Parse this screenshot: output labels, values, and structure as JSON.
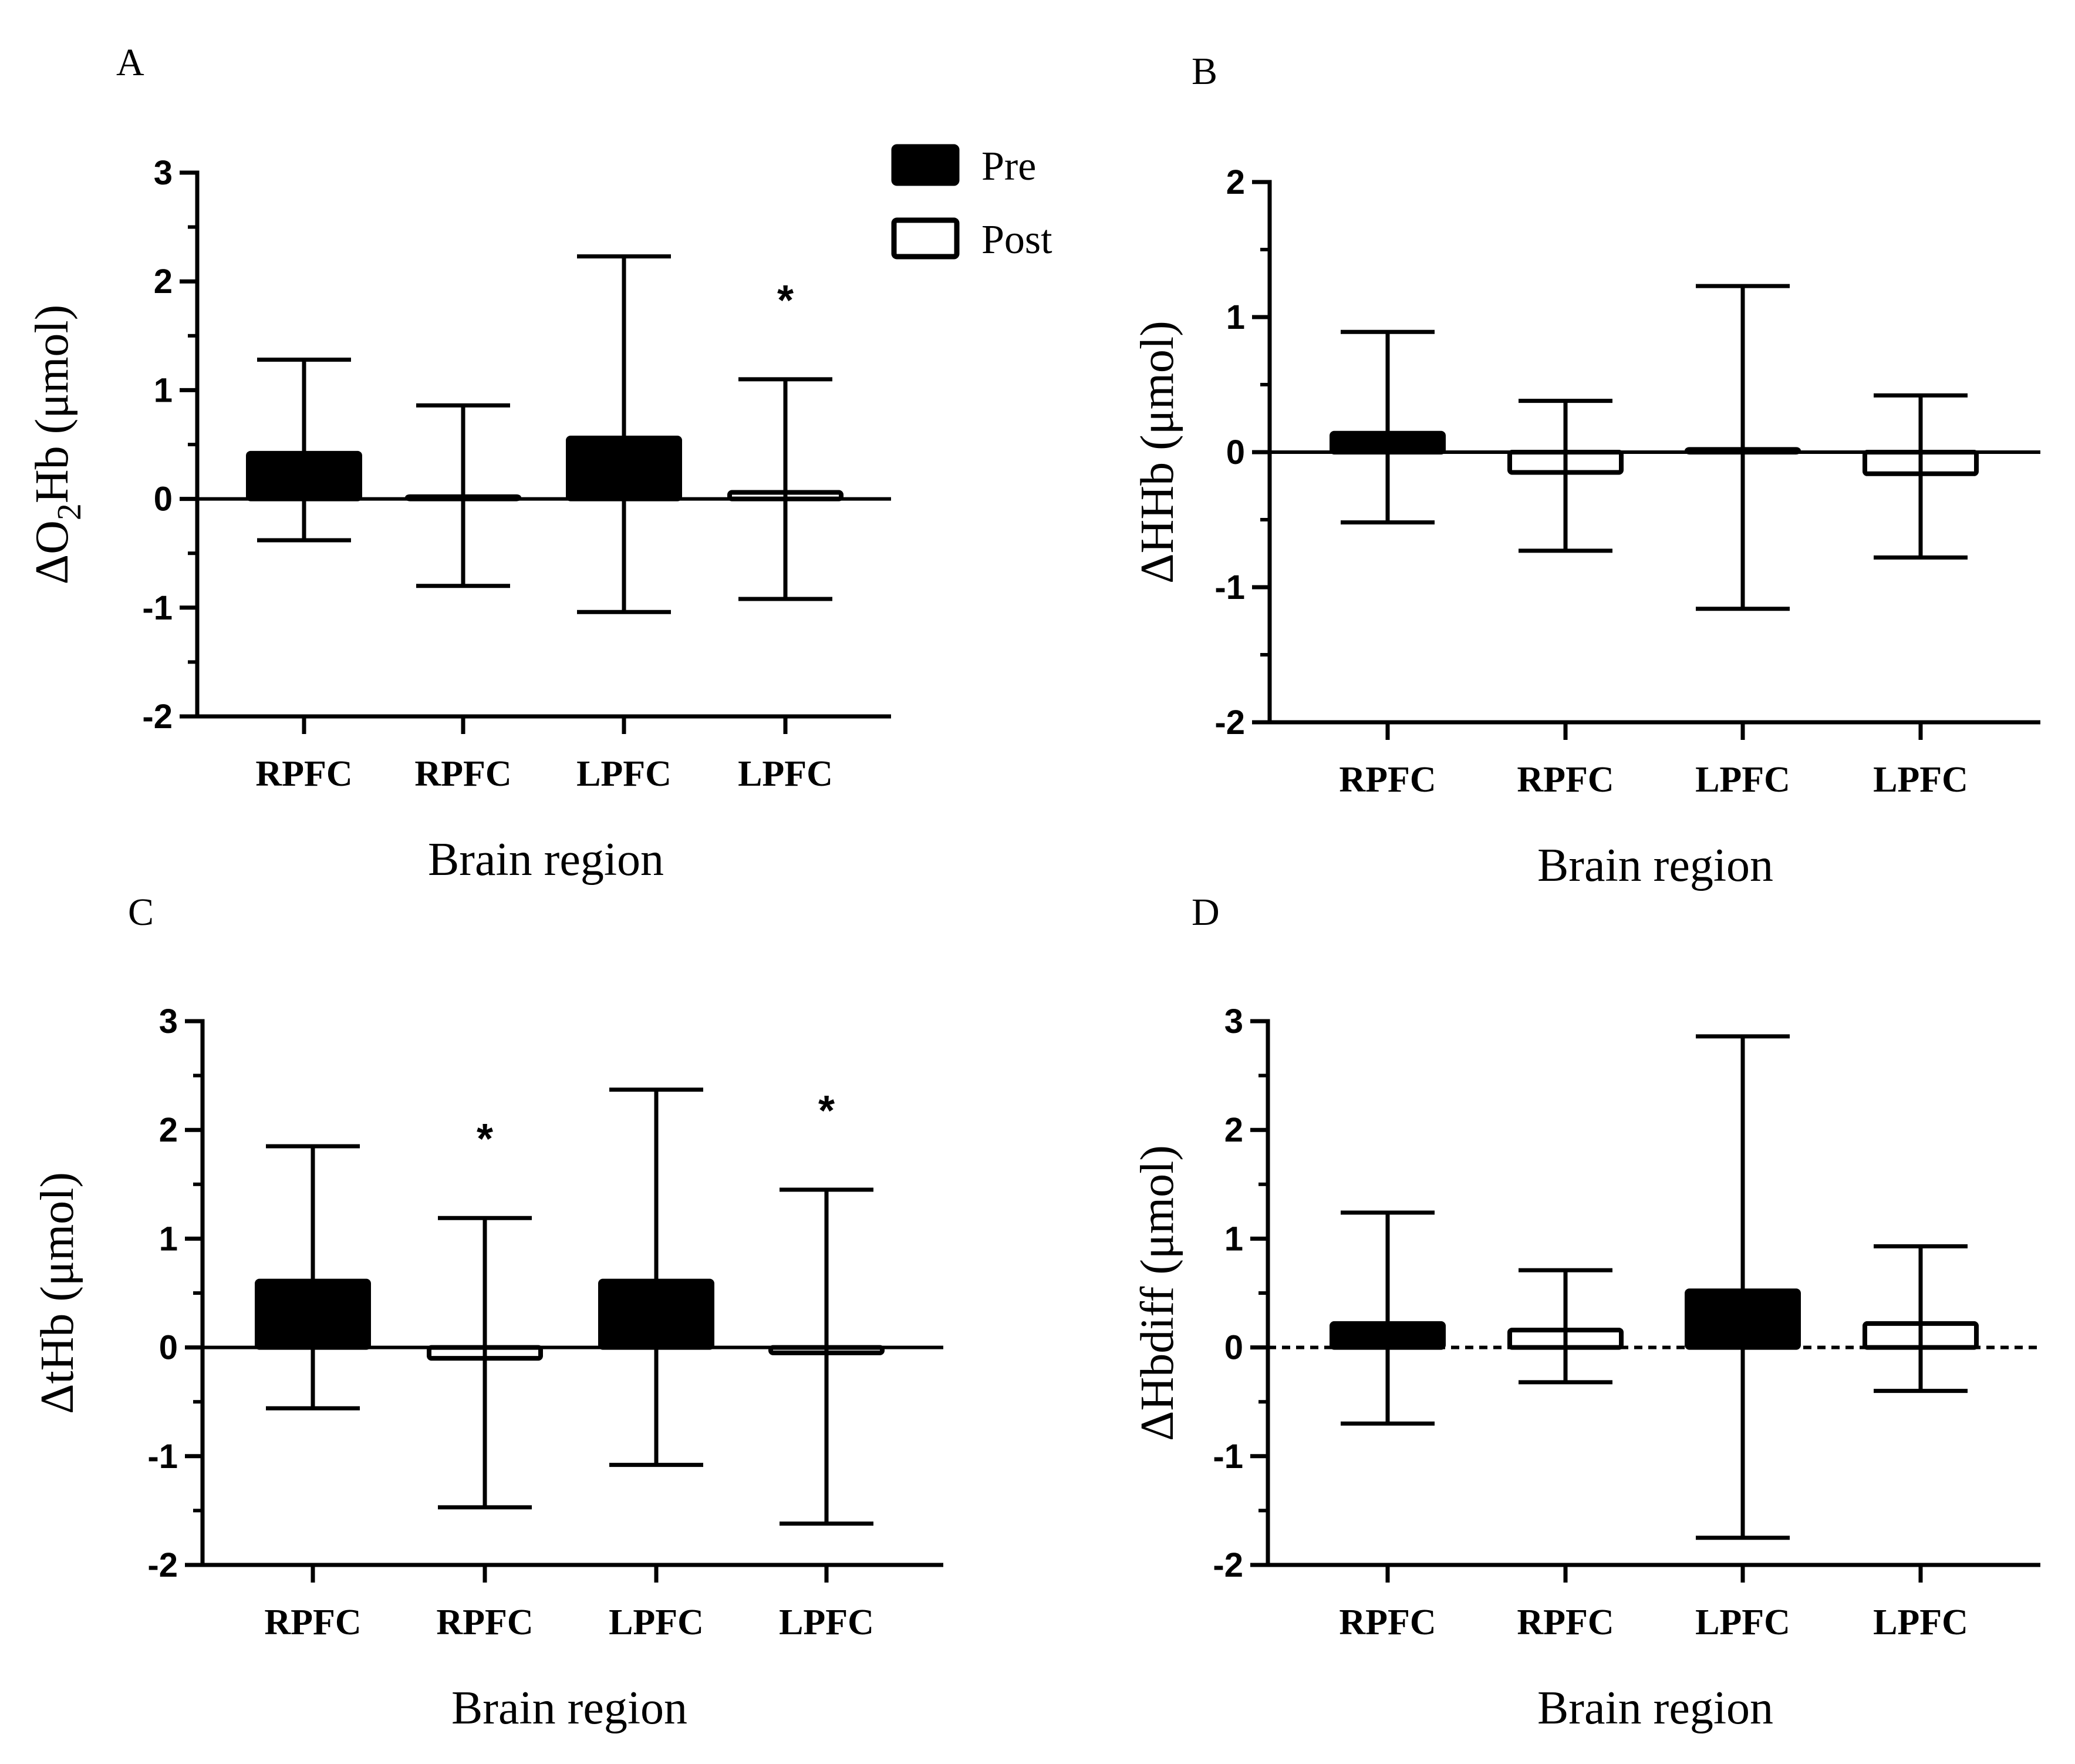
{
  "legend": [
    {
      "label": "Pre",
      "fill": "#000000"
    },
    {
      "label": "Post",
      "fill": "#ffffff"
    }
  ],
  "chart_data": [
    {
      "type": "bar",
      "panel": "A",
      "ylabel_parts": [
        "ΔO",
        "2",
        "Hb (μmol)"
      ],
      "xlabel": "Brain region",
      "categories": [
        "RPFC",
        "RPFC",
        "LPFC",
        "LPFC"
      ],
      "groups": [
        "Pre",
        "Post",
        "Pre",
        "Post"
      ],
      "values": [
        0.42,
        0.02,
        0.56,
        0.06
      ],
      "error_high": [
        1.28,
        0.86,
        2.23,
        1.1
      ],
      "error_low": [
        -0.38,
        -0.8,
        -1.04,
        -0.92
      ],
      "significant": [
        false,
        false,
        false,
        true
      ],
      "significance_marker": "*",
      "ylim": [
        -2,
        3
      ],
      "yticks": [
        -2,
        -1,
        0,
        1,
        2,
        3
      ],
      "ytick_labels": [
        "-2",
        "-1",
        "0",
        "1",
        "2",
        "3"
      ],
      "zero_line_dashed": false,
      "legend_position": "top-right"
    },
    {
      "type": "bar",
      "panel": "B",
      "ylabel_parts": [
        "ΔHHb (μmol)"
      ],
      "xlabel": "Brain region",
      "categories": [
        "RPFC",
        "RPFC",
        "LPFC",
        "LPFC"
      ],
      "groups": [
        "Pre",
        "Post",
        "Pre",
        "Post"
      ],
      "values": [
        0.14,
        -0.15,
        0.02,
        -0.16
      ],
      "error_high": [
        0.89,
        0.38,
        1.23,
        0.42
      ],
      "error_low": [
        -0.52,
        -0.73,
        -1.16,
        -0.78
      ],
      "significant": [
        false,
        false,
        false,
        false
      ],
      "significance_marker": "*",
      "ylim": [
        -2,
        2
      ],
      "yticks": [
        -2,
        -1,
        0,
        1,
        2
      ],
      "ytick_labels": [
        "-2",
        "-1",
        "0",
        "1",
        "2"
      ],
      "zero_line_dashed": false
    },
    {
      "type": "bar",
      "panel": "C",
      "ylabel_parts": [
        "ΔtHb (μmol)"
      ],
      "xlabel": "Brain region",
      "categories": [
        "RPFC",
        "RPFC",
        "LPFC",
        "LPFC"
      ],
      "groups": [
        "Pre",
        "Post",
        "Pre",
        "Post"
      ],
      "values": [
        0.61,
        -0.1,
        0.61,
        -0.05
      ],
      "error_high": [
        1.85,
        1.19,
        2.37,
        1.45
      ],
      "error_low": [
        -0.56,
        -1.47,
        -1.08,
        -1.62
      ],
      "significant": [
        false,
        true,
        false,
        true
      ],
      "significance_marker": "*",
      "ylim": [
        -2,
        3
      ],
      "yticks": [
        -2,
        -1,
        0,
        1,
        2,
        3
      ],
      "ytick_labels": [
        "-2",
        "-1",
        "0",
        "1",
        "2",
        "3"
      ],
      "zero_line_dashed": false
    },
    {
      "type": "bar",
      "panel": "D",
      "ylabel_parts": [
        "ΔHbdiff (μmol)"
      ],
      "xlabel": "Brain region",
      "categories": [
        "RPFC",
        "RPFC",
        "LPFC",
        "LPFC"
      ],
      "groups": [
        "Pre",
        "Post",
        "Pre",
        "Post"
      ],
      "values": [
        0.22,
        0.16,
        0.52,
        0.22
      ],
      "error_high": [
        1.24,
        0.71,
        2.86,
        0.93
      ],
      "error_low": [
        -0.7,
        -0.32,
        -1.75,
        -0.4
      ],
      "significant": [
        false,
        false,
        false,
        false
      ],
      "significance_marker": "*",
      "ylim": [
        -2,
        3
      ],
      "yticks": [
        -2,
        -1,
        0,
        1,
        2,
        3
      ],
      "ytick_labels": [
        "-2",
        "-1",
        "0",
        "1",
        "2",
        "3"
      ],
      "zero_line_dashed": true
    }
  ]
}
